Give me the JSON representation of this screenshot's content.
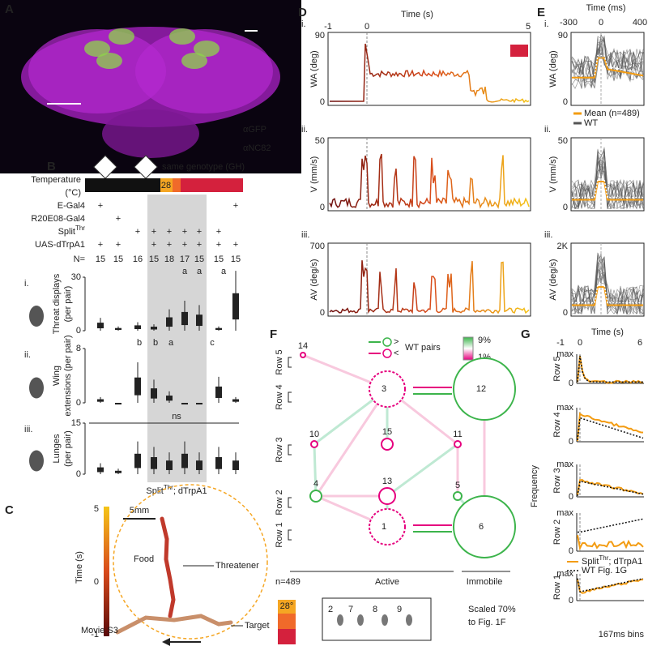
{
  "a": {
    "label": "A",
    "stain_1": "αGFP",
    "stain_2": "αNC82"
  },
  "b": {
    "label": "B",
    "banner": "same genotype (GH)",
    "temp_label_1": "Temperature",
    "temp_label_2": "(°C)",
    "temp": "28",
    "genotypes": [
      {
        "name": "E-Gal4",
        "plus": [
          "+",
          null,
          null,
          null,
          null,
          null,
          null,
          null,
          "+"
        ]
      },
      {
        "name": "R20E08-Gal4",
        "plus": [
          null,
          "+",
          null,
          null,
          null,
          null,
          null,
          null,
          null
        ]
      },
      {
        "name": "Split",
        "sup": "Thr",
        "plus": [
          null,
          null,
          "+",
          "+",
          "+",
          "+",
          "+",
          "+",
          null
        ]
      },
      {
        "name": "UAS-dTrpA1",
        "plus": [
          "+",
          "+",
          null,
          "+",
          "+",
          "+",
          "+",
          "+",
          "+"
        ]
      }
    ],
    "n_label": "N=",
    "n": [
      15,
      15,
      16,
      15,
      18,
      17,
      15,
      15,
      15
    ],
    "plots": [
      {
        "index": "i.",
        "ylabel": "Threat displays",
        "unit": "(per pair)",
        "yticks": [
          30,
          0
        ]
      },
      {
        "index": "ii.",
        "ylabel": "Wing",
        "unit": "extensions (per pair)",
        "yticks": [
          8,
          0
        ]
      },
      {
        "index": "iii.",
        "ylabel": "Lunges",
        "unit": "(per pair)",
        "yticks": [
          15,
          0
        ]
      }
    ],
    "letters_i": [
      "a",
      "a",
      "a"
    ],
    "letters_ii": [
      "b",
      "b",
      "a",
      "c"
    ],
    "ns": "ns",
    "group": "Split",
    "group_sup": "Thr",
    "group_rest": "; dTrpA1"
  },
  "c": {
    "label": "C",
    "cbar_title": "Time (s)",
    "cbar_ticks": [
      5,
      0,
      -1
    ],
    "scale": "5mm",
    "food": "Food",
    "threatener": "Threatener",
    "target": "Target",
    "movie": "Movie S3"
  },
  "d": {
    "label": "D",
    "xlabel": "Time (s)",
    "xticks": [
      -1,
      0,
      5
    ],
    "rows": [
      {
        "index": "i.",
        "ylabel": "WA (deg)",
        "yticks": [
          90,
          0
        ]
      },
      {
        "index": "ii.",
        "ylabel": "V (mm/s)",
        "yticks": [
          50,
          0
        ]
      },
      {
        "index": "iii.",
        "ylabel": "AV (deg/s)",
        "yticks": [
          700,
          0
        ]
      }
    ]
  },
  "e": {
    "label": "E",
    "xlabel": "Time (ms)",
    "xticks": [
      -300,
      0,
      400
    ],
    "rows": [
      {
        "index": "i.",
        "ylabel": "WA (deg)",
        "yticks": [
          90,
          0
        ]
      },
      {
        "index": "ii.",
        "ylabel": "V (mm/s)",
        "yticks": [
          50,
          0
        ]
      },
      {
        "index": "iii.",
        "ylabel": "AV (deg/s)",
        "yticks": [
          {
            "value": 2000,
            "label": "2K"
          },
          0
        ]
      }
    ],
    "legend_mean": "Mean (n=489)",
    "legend_wt": "WT"
  },
  "f": {
    "label": "F",
    "greater": ">",
    "less": "<",
    "wt_pairs": "WT pairs",
    "scale_max": "9%",
    "scale_min": "1%",
    "rows": [
      "Row 5",
      "Row 4",
      "Row 3",
      "Row 2",
      "Row 1"
    ],
    "nodes": [
      14,
      3,
      12,
      10,
      15,
      11,
      4,
      13,
      5,
      1,
      6
    ],
    "n": "n=489",
    "active": "Active",
    "immobile": "Immobile",
    "temp": "28°",
    "legend_states": [
      2,
      7,
      8,
      9
    ],
    "note_1": "Scaled 70%",
    "note_2": "to Fig. 1F"
  },
  "g": {
    "label": "G",
    "xlabel": "Time (s)",
    "xticks": [
      -1,
      0,
      6
    ],
    "ylabel": "Frequency",
    "rows": [
      "Row 5",
      "Row 4",
      "Row 3",
      "Row 2",
      "Row 1"
    ],
    "ymax": "max",
    "ymin": 0,
    "legend_1": "Split",
    "legend_1_sup": "Thr",
    "legend_1_rest": "; dTrpA1",
    "legend_2": "WT Fig. 1G",
    "bins": "167ms bins"
  }
}
